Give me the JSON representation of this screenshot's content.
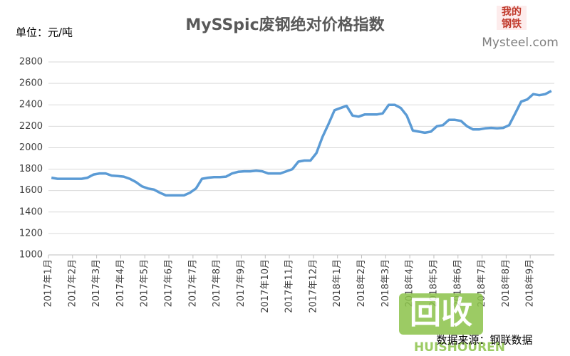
{
  "chart_data": {
    "type": "line",
    "title": "MySSpic废钢绝对价格指数",
    "y_label": "单位：元/吨",
    "logo": {
      "top": "我的",
      "bottom": "钢铁",
      "site": "Mysteel.com"
    },
    "source": "数据来源：钢联数据",
    "watermark": {
      "main": "回收",
      "sub": "HUISHOUREN"
    },
    "categories": [
      "2017年1月",
      null,
      null,
      null,
      "2017年2月",
      null,
      null,
      null,
      "2017年3月",
      null,
      null,
      null,
      "2017年4月",
      null,
      null,
      null,
      "2017年5月",
      null,
      null,
      null,
      "2017年6月",
      null,
      null,
      null,
      "2017年7月",
      null,
      null,
      null,
      "2017年8月",
      null,
      null,
      null,
      "2017年9月",
      null,
      null,
      null,
      "2017年10月",
      null,
      null,
      null,
      "2017年11月",
      null,
      null,
      null,
      "2017年12月",
      null,
      null,
      null,
      "2018年1月",
      null,
      null,
      null,
      "2018年2月",
      null,
      null,
      null,
      "2018年3月",
      null,
      null,
      null,
      "2018年4月",
      null,
      null,
      null,
      "2018年5月",
      null,
      null,
      null,
      "2018年6月",
      null,
      null,
      null,
      "2018年7月",
      null,
      null,
      null,
      "2018年8月",
      null,
      null,
      null,
      "2018年9月",
      null,
      null,
      null
    ],
    "series": [
      {
        "name": "MySSpic废钢绝对价格指数",
        "color": "#5b9bd5",
        "values": [
          1720,
          1710,
          1710,
          1710,
          1710,
          1710,
          1720,
          1750,
          1760,
          1760,
          1740,
          1735,
          1730,
          1710,
          1680,
          1640,
          1620,
          1610,
          1580,
          1555,
          1555,
          1555,
          1555,
          1580,
          1620,
          1710,
          1720,
          1725,
          1725,
          1730,
          1760,
          1775,
          1780,
          1780,
          1785,
          1780,
          1760,
          1760,
          1760,
          1780,
          1800,
          1870,
          1880,
          1880,
          1950,
          2100,
          2220,
          2350,
          2370,
          2390,
          2300,
          2290,
          2310,
          2310,
          2310,
          2320,
          2400,
          2400,
          2370,
          2300,
          2160,
          2150,
          2140,
          2150,
          2200,
          2210,
          2260,
          2260,
          2250,
          2200,
          2170,
          2170,
          2180,
          2185,
          2180,
          2185,
          2210,
          2320,
          2430,
          2450,
          2500,
          2490,
          2500,
          2530
        ]
      }
    ],
    "ylim": [
      1000,
      2800
    ],
    "yticks": [
      1000,
      1200,
      1400,
      1600,
      1800,
      2000,
      2200,
      2400,
      2600,
      2800
    ],
    "grid": true
  }
}
